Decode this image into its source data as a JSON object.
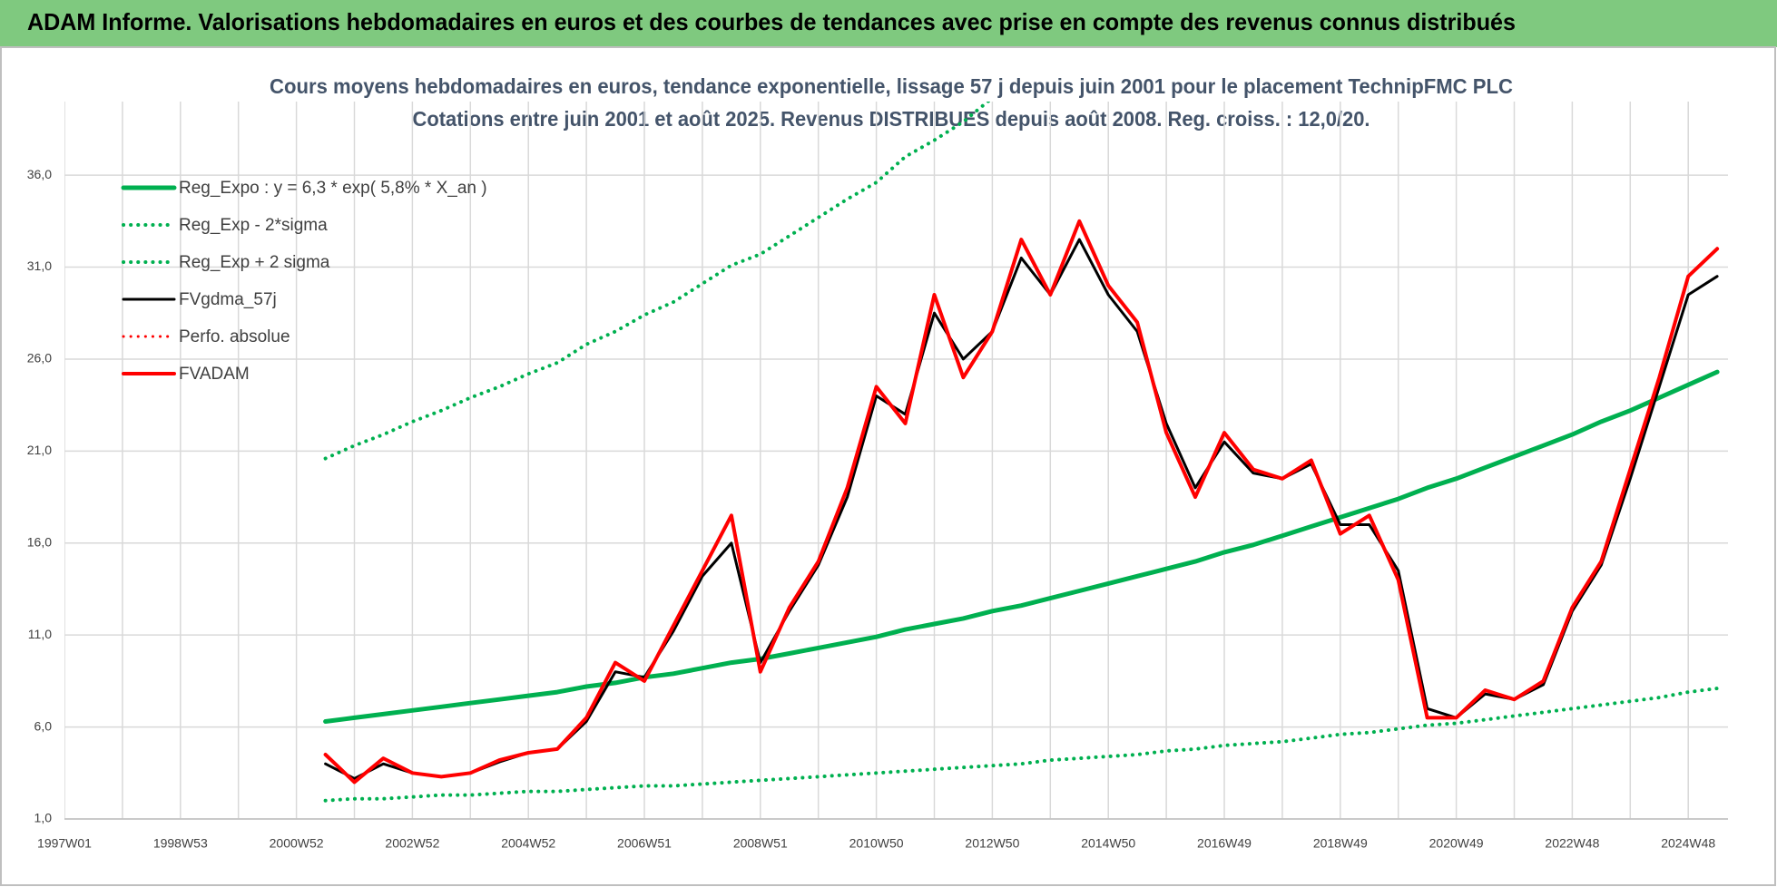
{
  "header": {
    "title": "ADAM Informe. Valorisations hebdomadaires en euros et des courbes de tendances avec prise en compte des revenus connus distribués"
  },
  "chart_data": {
    "type": "line",
    "title": "Cours moyens hebdomadaires en euros, tendance exponentielle, lissage 57 j depuis juin 2001 pour le placement TechnipFMC PLC",
    "subtitle": "Cotations entre juin 2001 et août 2025. Revenus DISTRIBUES depuis août 2008. Reg. croiss. : 12,0/20.",
    "categories": [
      "1997W01",
      null,
      null,
      null,
      "1998W53",
      null,
      null,
      null,
      "2000W52",
      null,
      null,
      null,
      "2002W52",
      null,
      null,
      null,
      "2004W52",
      null,
      null,
      null,
      "2006W51",
      null,
      null,
      null,
      "2008W51",
      null,
      null,
      null,
      "2010W50",
      null,
      null,
      null,
      "2012W50",
      null,
      null,
      null,
      "2014W50",
      null,
      null,
      null,
      "2016W49",
      null,
      null,
      null,
      "2018W49",
      null,
      null,
      null,
      "2020W49",
      null,
      null,
      null,
      "2022W48",
      null,
      null,
      null,
      "2024W48",
      null
    ],
    "ylim": [
      1,
      40
    ],
    "yticks": [
      {
        "value": 1,
        "label": "1,0"
      },
      {
        "value": 6,
        "label": "6,0"
      },
      {
        "value": 11,
        "label": "11,0"
      },
      {
        "value": 16,
        "label": "16,0"
      },
      {
        "value": 21,
        "label": "21,0"
      },
      {
        "value": 26,
        "label": "26,0"
      },
      {
        "value": 31,
        "label": "31,0"
      },
      {
        "value": 36,
        "label": "36,0"
      }
    ],
    "grid": true,
    "legend": "upper-left",
    "series": [
      {
        "name": "Reg_Expo : y = 6,3 * exp( 5,8% *  X_an )",
        "color": "#00b050",
        "dash": "solid",
        "width": 5,
        "values": [
          null,
          null,
          null,
          null,
          null,
          null,
          null,
          null,
          null,
          6.3,
          6.5,
          6.7,
          6.9,
          7.1,
          7.3,
          7.5,
          7.7,
          7.9,
          8.2,
          8.4,
          8.7,
          8.9,
          9.2,
          9.5,
          9.7,
          10.0,
          10.3,
          10.6,
          10.9,
          11.3,
          11.6,
          11.9,
          12.3,
          12.6,
          13.0,
          13.4,
          13.8,
          14.2,
          14.6,
          15.0,
          15.5,
          15.9,
          16.4,
          16.9,
          17.4,
          17.9,
          18.4,
          19.0,
          19.5,
          20.1,
          20.7,
          21.3,
          21.9,
          22.6,
          23.2,
          23.9,
          24.6,
          25.3
        ]
      },
      {
        "name": "Reg_Exp - 2*sigma",
        "color": "#00b050",
        "dash": "dotted",
        "width": 4,
        "values": [
          null,
          null,
          null,
          null,
          null,
          null,
          null,
          null,
          null,
          2.0,
          2.1,
          2.1,
          2.2,
          2.3,
          2.3,
          2.4,
          2.5,
          2.5,
          2.6,
          2.7,
          2.8,
          2.8,
          2.9,
          3.0,
          3.1,
          3.2,
          3.3,
          3.4,
          3.5,
          3.6,
          3.7,
          3.8,
          3.9,
          4.0,
          4.2,
          4.3,
          4.4,
          4.5,
          4.7,
          4.8,
          5.0,
          5.1,
          5.2,
          5.4,
          5.6,
          5.7,
          5.9,
          6.1,
          6.2,
          6.4,
          6.6,
          6.8,
          7.0,
          7.2,
          7.4,
          7.6,
          7.9,
          8.1
        ]
      },
      {
        "name": "Reg_Exp + 2 sigma",
        "color": "#00b050",
        "dash": "dotted",
        "width": 4,
        "values": [
          null,
          null,
          null,
          null,
          null,
          null,
          null,
          null,
          null,
          20.6,
          21.3,
          21.9,
          22.6,
          23.2,
          23.9,
          24.5,
          25.2,
          25.8,
          26.8,
          27.5,
          28.4,
          29.1,
          30.1,
          31.1,
          31.7,
          32.7,
          33.7,
          34.7,
          35.6,
          37.0,
          37.9,
          38.9,
          40.2,
          null,
          null,
          null,
          null,
          null,
          null,
          null,
          null,
          null,
          null,
          null,
          null,
          null,
          null,
          null,
          null,
          null,
          null,
          null,
          null,
          null,
          null,
          null,
          null,
          null
        ]
      },
      {
        "name": "FVgdma_57j",
        "color": "#000000",
        "dash": "solid",
        "width": 3,
        "values": [
          null,
          null,
          null,
          null,
          null,
          null,
          null,
          null,
          null,
          4.0,
          3.2,
          4.0,
          3.5,
          3.3,
          3.5,
          4.1,
          4.6,
          4.8,
          6.3,
          9.0,
          8.7,
          11.2,
          14.2,
          16.0,
          9.5,
          12.3,
          14.8,
          18.5,
          24.0,
          23.0,
          28.5,
          26.0,
          27.5,
          31.5,
          29.5,
          32.5,
          29.5,
          27.5,
          22.5,
          19.0,
          21.5,
          19.8,
          19.5,
          20.3,
          17.0,
          17.0,
          14.5,
          7.0,
          6.5,
          7.8,
          7.5,
          8.3,
          12.3,
          14.8,
          19.5,
          24.5,
          29.5,
          30.5
        ]
      },
      {
        "name": "Perfo. absolue",
        "color": "#ff0000",
        "dash": "dotted",
        "width": 3,
        "values": [
          null,
          null,
          null,
          null,
          null,
          null,
          null,
          null,
          null,
          null,
          null,
          null,
          null,
          null,
          null,
          null,
          null,
          null,
          null,
          null,
          null,
          null,
          null,
          null,
          null,
          null,
          null,
          null,
          null,
          null,
          null,
          null,
          null,
          null,
          null,
          null,
          null,
          null,
          null,
          null,
          null,
          null,
          null,
          null,
          null,
          null,
          null,
          null,
          null,
          null,
          null,
          null,
          null,
          null,
          null,
          null,
          null,
          null
        ]
      },
      {
        "name": "FVADAM",
        "color": "#ff0000",
        "dash": "solid",
        "width": 4,
        "values": [
          null,
          null,
          null,
          null,
          null,
          null,
          null,
          null,
          null,
          4.5,
          3.0,
          4.3,
          3.5,
          3.3,
          3.5,
          4.2,
          4.6,
          4.8,
          6.5,
          9.5,
          8.5,
          11.5,
          14.5,
          17.5,
          9.0,
          12.5,
          15.0,
          19.0,
          24.5,
          22.5,
          29.5,
          25.0,
          27.5,
          32.5,
          29.5,
          33.5,
          30.0,
          28.0,
          22.0,
          18.5,
          22.0,
          20.0,
          19.5,
          20.5,
          16.5,
          17.5,
          14.0,
          6.5,
          6.5,
          8.0,
          7.5,
          8.5,
          12.5,
          15.0,
          20.0,
          25.0,
          30.5,
          32.0
        ]
      }
    ]
  }
}
